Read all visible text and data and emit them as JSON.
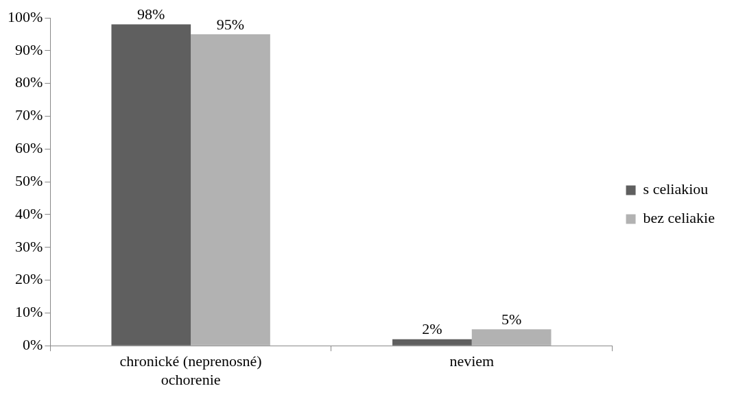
{
  "chart_data": {
    "type": "bar",
    "categories": [
      "chronické (neprenosné) ochorenie",
      "neviem"
    ],
    "series": [
      {
        "name": "s celiakiou",
        "color": "#5f5f5f",
        "values": [
          98,
          2
        ],
        "value_labels": [
          "98%",
          "2%"
        ]
      },
      {
        "name": "bez celiakie",
        "color": "#b2b2b2",
        "values": [
          95,
          5
        ],
        "value_labels": [
          "95%",
          "5%"
        ]
      }
    ],
    "ylim": [
      0,
      100
    ],
    "yticks": [
      {
        "value": 0,
        "label": "0%"
      },
      {
        "value": 10,
        "label": "10%"
      },
      {
        "value": 20,
        "label": "20%"
      },
      {
        "value": 30,
        "label": "30%"
      },
      {
        "value": 40,
        "label": "40%"
      },
      {
        "value": 50,
        "label": "50%"
      },
      {
        "value": 60,
        "label": "60%"
      },
      {
        "value": 70,
        "label": "70%"
      },
      {
        "value": 80,
        "label": "80%"
      },
      {
        "value": 90,
        "label": "90%"
      },
      {
        "value": 100,
        "label": "100%"
      }
    ],
    "legend": "right"
  }
}
